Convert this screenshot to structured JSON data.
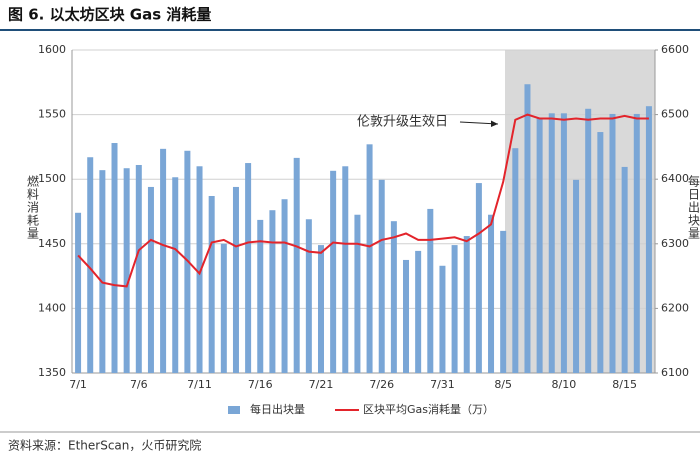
{
  "chart_data": {
    "type": "bar",
    "title": "图 6.  以太坊区块 Gas 消耗量",
    "source": "资料来源：EtherScan，火币研究院",
    "ylabel": "燃料消耗量",
    "y2label": "每日出块量",
    "annotation": "伦敦升级生效日",
    "categories": [
      "7/1",
      null,
      null,
      null,
      null,
      "7/6",
      null,
      null,
      null,
      null,
      "7/11",
      null,
      null,
      null,
      null,
      "7/16",
      null,
      null,
      null,
      null,
      "7/21",
      null,
      null,
      null,
      null,
      "7/26",
      null,
      null,
      null,
      null,
      "7/31",
      null,
      null,
      null,
      null,
      "8/5",
      null,
      null,
      null,
      null,
      "8/10",
      null,
      null,
      null,
      null,
      "8/15",
      null,
      null
    ],
    "series": [
      {
        "name": "每日出块量",
        "type": "bar",
        "axis": "y2",
        "color": "#7aa6d6",
        "values": [
          6348,
          6434,
          6414,
          6456,
          6417,
          6422,
          6388,
          6447,
          6403,
          6444,
          6420,
          6374,
          6300,
          6388,
          6425,
          6337,
          6352,
          6369,
          6433,
          6338,
          6298,
          6413,
          6420,
          6345,
          6454,
          6399,
          6335,
          6275,
          6289,
          6354,
          6266,
          6298,
          6312,
          6394,
          6345,
          6320,
          6448,
          6547,
          6495,
          6502,
          6502,
          6399,
          6509,
          6473,
          6501,
          6419,
          6501,
          6513
        ]
      },
      {
        "name": "区块平均Gas消耗量（万）",
        "type": "line",
        "color": "#e3242b",
        "values": [
          1441,
          1431,
          1420,
          1418,
          1417,
          1445,
          1453,
          1449,
          1446,
          1437,
          1427,
          1451,
          1453,
          1448,
          1451,
          1452,
          1451,
          1451,
          1448,
          1444,
          1443,
          1451,
          1450,
          1450,
          1448,
          1453,
          1455,
          1458,
          1453,
          1453,
          1454,
          1455,
          1452,
          1458,
          1465,
          1498,
          1546,
          1550,
          1547,
          1547,
          1546,
          1547,
          1546,
          1547,
          1547,
          1549,
          1547,
          1547
        ]
      }
    ],
    "ylim": [
      1350,
      1600
    ],
    "yticks": [
      1350,
      1400,
      1450,
      1500,
      1550,
      1600
    ],
    "y2lim": [
      6100,
      6600
    ],
    "y2ticks": [
      6100,
      6200,
      6300,
      6400,
      6500,
      6600
    ],
    "grid": true
  }
}
